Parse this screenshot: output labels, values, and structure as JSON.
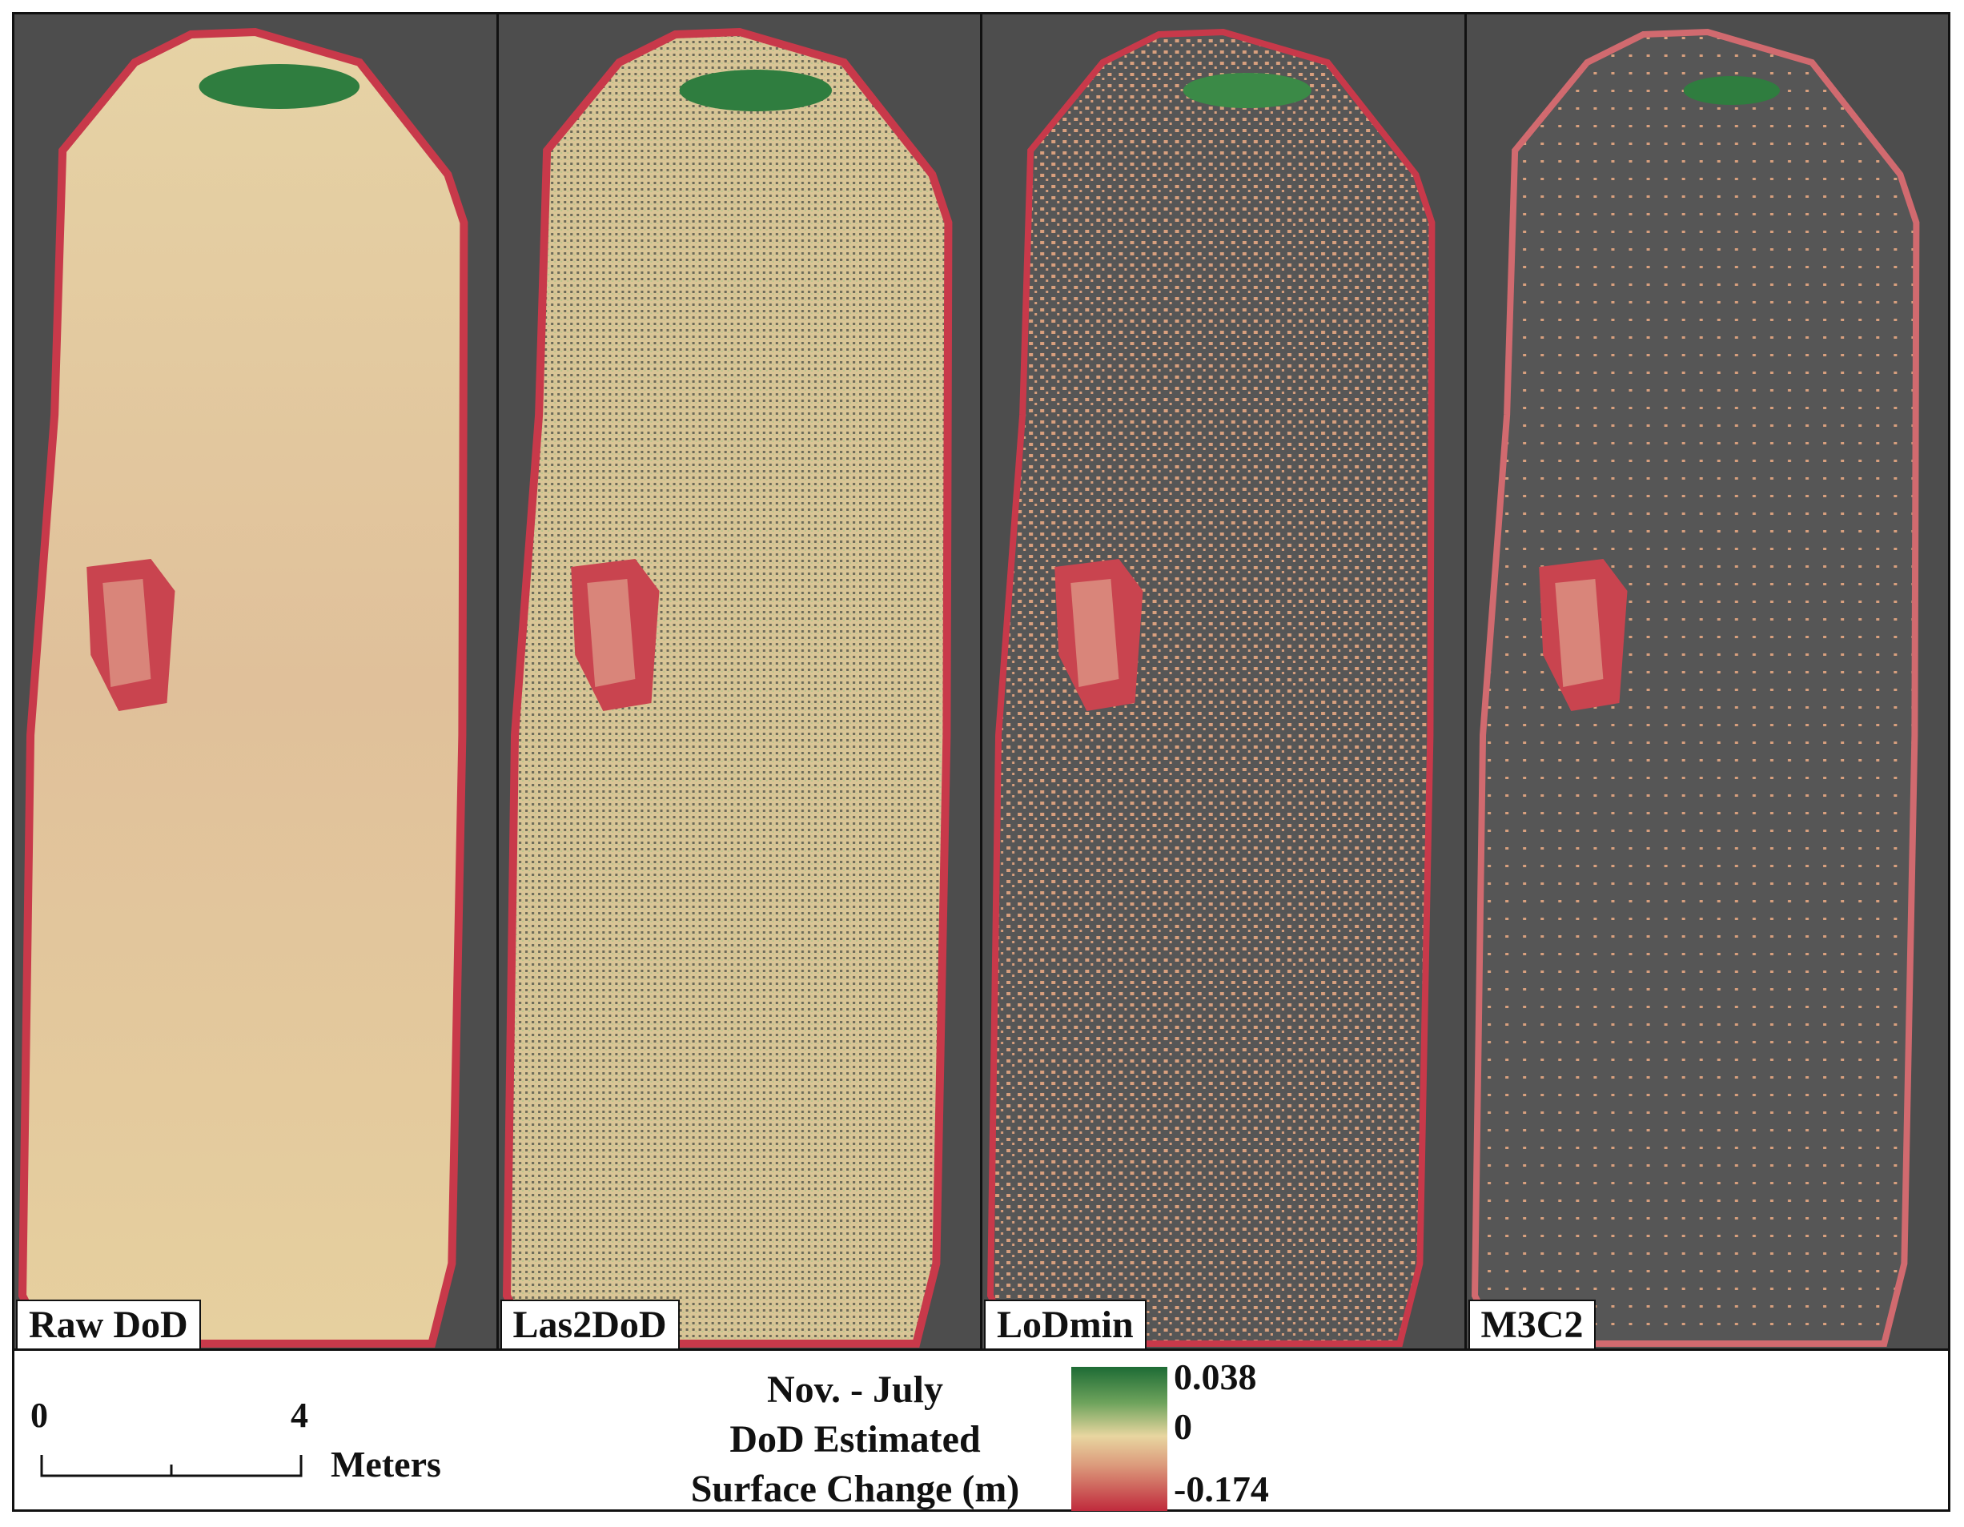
{
  "panels": [
    {
      "label": "Raw DoD"
    },
    {
      "label": "Las2DoD"
    },
    {
      "label": "LoDmin"
    },
    {
      "label": "M3C2"
    }
  ],
  "legend": {
    "title_lines": [
      "Nov. - July",
      "DoD Estimated",
      "Surface Change (m)"
    ],
    "ramp_max": "0.038",
    "ramp_mid": "0",
    "ramp_min": "-0.174",
    "colors": {
      "positive": "#1d6b35",
      "zero": "#e8d6a0",
      "negative": "#c02a3c",
      "no_data": "#4d4d4d"
    }
  },
  "scale_bar": {
    "start_label": "0",
    "end_label": "4",
    "unit": "Meters"
  }
}
